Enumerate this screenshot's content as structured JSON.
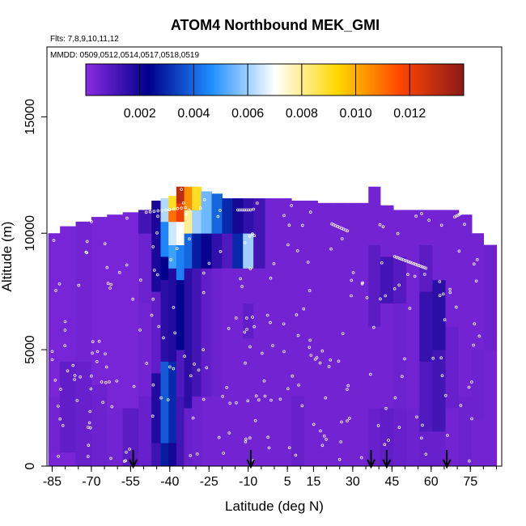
{
  "chart_data": {
    "type": "heatmap",
    "title": "ATOM4 Northbound MEK_GMI",
    "subtitle_flights": "Flts: 7,8,9,10,11,12",
    "subtitle_dates": "MMDD: 0509,0512,0514,0517,0518,0519",
    "xlabel": "Latitude (deg N)",
    "ylabel": "Altitude (m)",
    "xlim": [
      -87,
      87
    ],
    "ylim": [
      0,
      18000
    ],
    "x_ticks": [
      "-85",
      "-70",
      "-55",
      "-40",
      "-25",
      "-10",
      "5",
      "15",
      "30",
      "45",
      "60",
      "75"
    ],
    "y_ticks": [
      "0",
      "5000",
      "10000",
      "15000"
    ],
    "colorbar": {
      "range": [
        0,
        0.014
      ],
      "tick_labels": [
        "0.002",
        "0.004",
        "0.006",
        "0.008",
        "0.010",
        "0.012"
      ],
      "tick_values": [
        0.002,
        0.004,
        0.006,
        0.008,
        0.01,
        0.012
      ],
      "colors": [
        "#8a2be2",
        "#00008b",
        "#1e90ff",
        "#ffffff",
        "#ffd700",
        "#ff4500",
        "#8b1a1a"
      ]
    },
    "flight_marker_latitudes": [
      -54,
      -9,
      37,
      43,
      66
    ],
    "curtain_columns": [
      {
        "lat": -85,
        "top": 10000,
        "cells": [
          [
            0,
            600,
            0.0003
          ],
          [
            600,
            3000,
            0.0004
          ],
          [
            3000,
            10000,
            0.0003
          ]
        ]
      },
      {
        "lat": -79,
        "top": 10300,
        "cells": [
          [
            0,
            600,
            0.0003
          ],
          [
            600,
            4500,
            0.0007
          ],
          [
            4500,
            10300,
            0.0003
          ]
        ]
      },
      {
        "lat": -73,
        "top": 10500,
        "cells": [
          [
            0,
            4500,
            0.0006
          ],
          [
            4500,
            10500,
            0.0004
          ]
        ]
      },
      {
        "lat": -67,
        "top": 10700,
        "cells": [
          [
            0,
            3500,
            0.0005
          ],
          [
            3500,
            10700,
            0.0003
          ]
        ]
      },
      {
        "lat": -61,
        "top": 10800,
        "cells": [
          [
            0,
            2500,
            0.0004
          ],
          [
            2500,
            10800,
            0.0003
          ]
        ]
      },
      {
        "lat": -55,
        "top": 10900,
        "cells": [
          [
            0,
            2500,
            0.0008
          ],
          [
            2500,
            10900,
            0.0003
          ]
        ]
      },
      {
        "lat": -49,
        "top": 11000,
        "cells": [
          [
            0,
            3000,
            0.0006
          ],
          [
            3000,
            7000,
            0.0004
          ],
          [
            7000,
            10000,
            0.0005
          ],
          [
            10000,
            11000,
            0.0012
          ]
        ]
      },
      {
        "lat": -45,
        "top": 11400,
        "cells": [
          [
            0,
            1000,
            0.0013
          ],
          [
            1000,
            4000,
            0.0018
          ],
          [
            4000,
            7500,
            0.0007
          ],
          [
            7500,
            11400,
            0.0019
          ]
        ]
      },
      {
        "lat": -42,
        "top": 11500,
        "cells": [
          [
            0,
            1000,
            0.0028
          ],
          [
            1000,
            4500,
            0.0038
          ],
          [
            4500,
            8000,
            0.0016
          ],
          [
            8000,
            9000,
            0.0023
          ],
          [
            9000,
            10500,
            0.0045
          ],
          [
            10500,
            11500,
            0.0062
          ]
        ]
      },
      {
        "lat": -39,
        "top": 11600,
        "cells": [
          [
            0,
            1000,
            0.002
          ],
          [
            1000,
            4500,
            0.003
          ],
          [
            4500,
            8500,
            0.0018
          ],
          [
            8500,
            9500,
            0.005
          ],
          [
            9500,
            10500,
            0.0065
          ],
          [
            10500,
            11000,
            0.011
          ],
          [
            11000,
            11600,
            0.009
          ]
        ]
      },
      {
        "lat": -36,
        "top": 12000,
        "cells": [
          [
            0,
            3000,
            0.0012
          ],
          [
            3000,
            5000,
            0.001
          ],
          [
            5000,
            8000,
            0.0024
          ],
          [
            8000,
            9500,
            0.0044
          ],
          [
            9500,
            10500,
            0.007
          ],
          [
            10500,
            11300,
            0.012
          ],
          [
            11300,
            12000,
            0.013
          ]
        ]
      },
      {
        "lat": -33,
        "top": 12000,
        "cells": [
          [
            0,
            2500,
            0.0006
          ],
          [
            2500,
            8500,
            0.0016
          ],
          [
            8500,
            10000,
            0.004
          ],
          [
            10000,
            11000,
            0.008
          ],
          [
            11000,
            12000,
            0.0105
          ]
        ]
      },
      {
        "lat": -30,
        "top": 12000,
        "cells": [
          [
            0,
            3000,
            0.0005
          ],
          [
            3000,
            8500,
            0.0012
          ],
          [
            8500,
            10000,
            0.0028
          ],
          [
            10000,
            11000,
            0.006
          ],
          [
            11000,
            12000,
            0.009
          ]
        ]
      },
      {
        "lat": -26,
        "top": 11800,
        "cells": [
          [
            0,
            3000,
            0.0004
          ],
          [
            3000,
            8500,
            0.0007
          ],
          [
            8500,
            10000,
            0.0022
          ],
          [
            10000,
            11800,
            0.0055
          ]
        ]
      },
      {
        "lat": -22,
        "top": 11700,
        "cells": [
          [
            0,
            3000,
            0.0004
          ],
          [
            3000,
            8500,
            0.0005
          ],
          [
            8500,
            10000,
            0.0015
          ],
          [
            10000,
            11700,
            0.004
          ]
        ]
      },
      {
        "lat": -18,
        "top": 11500,
        "cells": [
          [
            0,
            8500,
            0.0004
          ],
          [
            8500,
            10000,
            0.001
          ],
          [
            10000,
            11500,
            0.003
          ]
        ]
      },
      {
        "lat": -14,
        "top": 11500,
        "cells": [
          [
            0,
            8500,
            0.0004
          ],
          [
            8500,
            10000,
            0.003
          ],
          [
            10000,
            11500,
            0.002
          ]
        ]
      },
      {
        "lat": -10,
        "top": 11500,
        "cells": [
          [
            0,
            5500,
            0.0004
          ],
          [
            5500,
            7000,
            0.0007
          ],
          [
            7000,
            8500,
            0.0004
          ],
          [
            8500,
            10000,
            0.006
          ],
          [
            10000,
            11500,
            0.0015
          ]
        ]
      },
      {
        "lat": -6,
        "top": 11500,
        "cells": [
          [
            0,
            8500,
            0.0004
          ],
          [
            8500,
            10000,
            0.0012
          ],
          [
            10000,
            11500,
            0.0012
          ]
        ]
      },
      {
        "lat": -1,
        "top": 11500,
        "cells": [
          [
            0,
            11500,
            0.0004
          ]
        ]
      },
      {
        "lat": 4,
        "top": 11500,
        "cells": [
          [
            0,
            11500,
            0.0004
          ]
        ]
      },
      {
        "lat": 9,
        "top": 11400,
        "cells": [
          [
            0,
            3000,
            0.0006
          ],
          [
            3000,
            11400,
            0.0004
          ]
        ]
      },
      {
        "lat": 14,
        "top": 11400,
        "cells": [
          [
            0,
            11400,
            0.0004
          ]
        ]
      },
      {
        "lat": 19,
        "top": 11300,
        "cells": [
          [
            0,
            11300,
            0.0004
          ]
        ]
      },
      {
        "lat": 24,
        "top": 11300,
        "cells": [
          [
            0,
            11300,
            0.0004
          ]
        ]
      },
      {
        "lat": 29,
        "top": 11300,
        "cells": [
          [
            0,
            11300,
            0.0004
          ]
        ]
      },
      {
        "lat": 34,
        "top": 11300,
        "cells": [
          [
            0,
            11300,
            0.0004
          ]
        ]
      },
      {
        "lat": 38,
        "top": 12000,
        "cells": [
          [
            0,
            2500,
            0.0006
          ],
          [
            2500,
            6000,
            0.0004
          ],
          [
            6000,
            9500,
            0.0008
          ],
          [
            9500,
            12000,
            0.0004
          ]
        ]
      },
      {
        "lat": 43,
        "top": 11200,
        "cells": [
          [
            0,
            2500,
            0.0007
          ],
          [
            2500,
            7000,
            0.0004
          ],
          [
            7000,
            9000,
            0.0012
          ],
          [
            9000,
            11200,
            0.0004
          ]
        ]
      },
      {
        "lat": 48,
        "top": 11000,
        "cells": [
          [
            0,
            2500,
            0.0006
          ],
          [
            2500,
            7000,
            0.0005
          ],
          [
            7000,
            9000,
            0.0009
          ],
          [
            9000,
            11000,
            0.0004
          ]
        ]
      },
      {
        "lat": 53,
        "top": 11000,
        "cells": [
          [
            0,
            2500,
            0.0005
          ],
          [
            2500,
            11000,
            0.0004
          ]
        ]
      },
      {
        "lat": 58,
        "top": 11000,
        "cells": [
          [
            0,
            1500,
            0.0006
          ],
          [
            1500,
            4500,
            0.001
          ],
          [
            4500,
            7500,
            0.0014
          ],
          [
            7500,
            9500,
            0.0008
          ],
          [
            9500,
            11000,
            0.0004
          ]
        ]
      },
      {
        "lat": 63,
        "top": 11000,
        "cells": [
          [
            0,
            1500,
            0.0006
          ],
          [
            1500,
            5000,
            0.0012
          ],
          [
            5000,
            8000,
            0.0016
          ],
          [
            8000,
            11000,
            0.0004
          ]
        ]
      },
      {
        "lat": 68,
        "top": 11000,
        "cells": [
          [
            0,
            2500,
            0.0004
          ],
          [
            2500,
            6000,
            0.0006
          ],
          [
            6000,
            11000,
            0.0004
          ]
        ]
      },
      {
        "lat": 73,
        "top": 10800,
        "cells": [
          [
            0,
            3000,
            0.0005
          ],
          [
            3000,
            10800,
            0.0004
          ]
        ]
      },
      {
        "lat": 78,
        "top": 10000,
        "cells": [
          [
            0,
            2000,
            0.0004
          ],
          [
            2000,
            5000,
            0.0005
          ],
          [
            5000,
            10000,
            0.0004
          ]
        ]
      },
      {
        "lat": 82,
        "top": 9500,
        "cells": [
          [
            0,
            5000,
            0.0004
          ],
          [
            5000,
            9500,
            0.0005
          ]
        ]
      }
    ]
  }
}
